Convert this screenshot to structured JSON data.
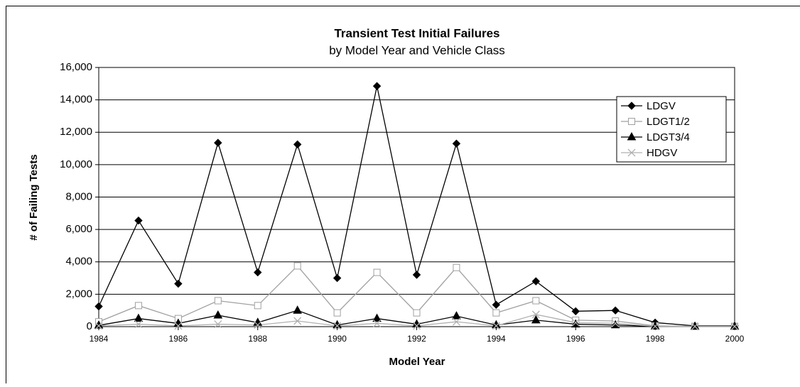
{
  "chart_data": {
    "type": "line",
    "title": "Transient Test Initial Failures",
    "subtitle": "by Model Year and Vehicle Class",
    "xlabel": "Model Year",
    "ylabel": "# of Failing Tests",
    "x": [
      1984,
      1985,
      1986,
      1987,
      1988,
      1989,
      1990,
      1991,
      1992,
      1993,
      1994,
      1995,
      1996,
      1997,
      1998,
      1999,
      2000
    ],
    "series": [
      {
        "name": "LDGV",
        "color": "#000000",
        "marker": "diamond",
        "values": [
          1250,
          6550,
          2650,
          11350,
          3350,
          11250,
          3000,
          14850,
          3200,
          11300,
          1350,
          2800,
          950,
          1000,
          250,
          50,
          50
        ]
      },
      {
        "name": "LDGT1/2",
        "color": "#a0a0a0",
        "marker": "square",
        "values": [
          300,
          1300,
          500,
          1600,
          1300,
          3750,
          850,
          3350,
          850,
          3650,
          850,
          1600,
          400,
          350,
          50,
          20,
          20
        ]
      },
      {
        "name": "LDGT3/4",
        "color": "#000000",
        "marker": "triangle",
        "values": [
          80,
          500,
          200,
          700,
          250,
          1000,
          100,
          500,
          150,
          650,
          100,
          400,
          150,
          100,
          20,
          10,
          10
        ]
      },
      {
        "name": "HDGV",
        "color": "#b0b0b0",
        "marker": "x",
        "values": [
          50,
          150,
          50,
          150,
          100,
          350,
          50,
          200,
          50,
          300,
          50,
          750,
          250,
          200,
          20,
          10,
          10
        ]
      }
    ],
    "xlim": [
      1984,
      2000
    ],
    "xticks": [
      1984,
      1986,
      1988,
      1990,
      1992,
      1994,
      1996,
      1998,
      2000
    ],
    "ylim": [
      0,
      16000
    ],
    "yticks": [
      0,
      {
        "value": 2000,
        "label": "2,000"
      },
      {
        "value": 4000,
        "label": "4,000"
      },
      {
        "value": 6000,
        "label": "6,000"
      },
      {
        "value": 8000,
        "label": "8,000"
      },
      {
        "value": 10000,
        "label": "10,000"
      },
      {
        "value": 12000,
        "label": "12,000"
      },
      {
        "value": 14000,
        "label": "14,000"
      },
      {
        "value": 16000,
        "label": "16,000"
      }
    ],
    "grid": true,
    "legend": "upper right"
  }
}
